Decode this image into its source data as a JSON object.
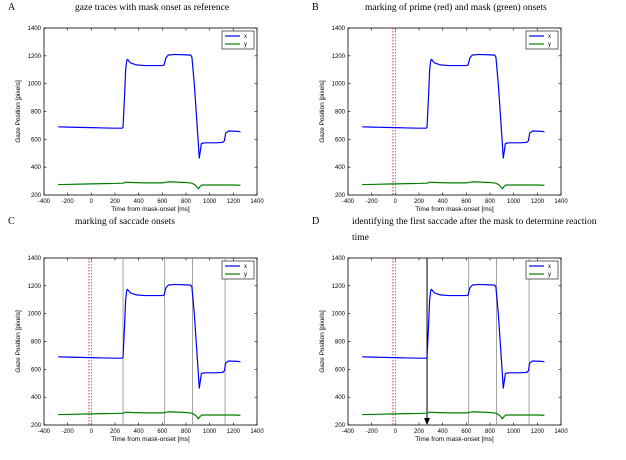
{
  "chart_data": [
    {
      "type": "line",
      "panel_label": "A",
      "title": "gaze traces with mask onset as reference",
      "xlabel": "Time from mask-onset [ms]",
      "ylabel": "Gaze Position [pixels]",
      "xlim": [
        -400,
        1400
      ],
      "ylim": [
        200,
        1400
      ],
      "xticks": [
        -400,
        -200,
        0,
        200,
        400,
        600,
        800,
        1000,
        1200,
        1400
      ],
      "yticks": [
        200,
        400,
        600,
        800,
        1000,
        1200,
        1400
      ],
      "grid": false,
      "legend_position": "top-right",
      "series": [
        {
          "name": "x",
          "color": "#0000ff"
        },
        {
          "name": "y",
          "color": "#008000"
        }
      ],
      "prime_onset": null,
      "mask_onset": null,
      "saccade_onsets": [],
      "reaction_arrow": null
    },
    {
      "type": "line",
      "panel_label": "B",
      "title": "marking of prime (red) and mask (green) onsets",
      "xlabel": "Time from mask-onset [ms]",
      "ylabel": "Gaze Position [pixels]",
      "xlim": [
        -400,
        1400
      ],
      "ylim": [
        200,
        1400
      ],
      "xticks": [
        -400,
        -200,
        0,
        200,
        400,
        600,
        800,
        1000,
        1200,
        1400
      ],
      "yticks": [
        200,
        400,
        600,
        800,
        1000,
        1200,
        1400
      ],
      "grid": false,
      "legend_position": "top-right",
      "series": [
        {
          "name": "x",
          "color": "#0000ff"
        },
        {
          "name": "y",
          "color": "#008000"
        }
      ],
      "prime_onset": -20,
      "mask_onset": 0,
      "saccade_onsets": [],
      "reaction_arrow": null
    },
    {
      "type": "line",
      "panel_label": "C",
      "title": "marking of saccade onsets",
      "xlabel": "Time from mask-onset [ms]",
      "ylabel": "Gaze Position [pixels]",
      "xlim": [
        -400,
        1400
      ],
      "ylim": [
        200,
        1400
      ],
      "xticks": [
        -400,
        -200,
        0,
        200,
        400,
        600,
        800,
        1000,
        1200,
        1400
      ],
      "yticks": [
        200,
        400,
        600,
        800,
        1000,
        1200,
        1400
      ],
      "grid": false,
      "legend_position": "top-right",
      "series": [
        {
          "name": "x",
          "color": "#0000ff"
        },
        {
          "name": "y",
          "color": "#008000"
        }
      ],
      "prime_onset": -20,
      "mask_onset": 0,
      "saccade_onsets": [
        268,
        620,
        855,
        1130
      ],
      "reaction_arrow": null
    },
    {
      "type": "line",
      "panel_label": "D",
      "title": "identifying the first saccade after the mask to determine reaction time",
      "xlabel": "Time from mask-onset [ms]",
      "ylabel": "Gaze Position [pixels]",
      "xlim": [
        -400,
        1400
      ],
      "ylim": [
        200,
        1400
      ],
      "xticks": [
        -400,
        -200,
        0,
        200,
        400,
        600,
        800,
        1000,
        1200,
        1400
      ],
      "yticks": [
        200,
        400,
        600,
        800,
        1000,
        1200,
        1400
      ],
      "grid": false,
      "legend_position": "top-right",
      "series": [
        {
          "name": "x",
          "color": "#0000ff"
        },
        {
          "name": "y",
          "color": "#008000"
        }
      ],
      "prime_onset": -20,
      "mask_onset": 0,
      "saccade_onsets": [
        268,
        620,
        855,
        1130
      ],
      "reaction_arrow": 268
    }
  ],
  "traces": {
    "x": [
      [
        -280,
        690
      ],
      [
        -200,
        688
      ],
      [
        -100,
        686
      ],
      [
        0,
        684
      ],
      [
        100,
        682
      ],
      [
        200,
        680
      ],
      [
        262,
        680
      ],
      [
        268,
        690
      ],
      [
        280,
        900
      ],
      [
        290,
        1100
      ],
      [
        298,
        1160
      ],
      [
        305,
        1175
      ],
      [
        330,
        1150
      ],
      [
        380,
        1135
      ],
      [
        450,
        1130
      ],
      [
        540,
        1130
      ],
      [
        600,
        1130
      ],
      [
        615,
        1135
      ],
      [
        630,
        1185
      ],
      [
        650,
        1205
      ],
      [
        700,
        1210
      ],
      [
        780,
        1208
      ],
      [
        840,
        1205
      ],
      [
        850,
        1190
      ],
      [
        870,
        1000
      ],
      [
        890,
        750
      ],
      [
        905,
        560
      ],
      [
        912,
        465
      ],
      [
        920,
        510
      ],
      [
        930,
        570
      ],
      [
        960,
        575
      ],
      [
        1050,
        575
      ],
      [
        1110,
        578
      ],
      [
        1125,
        590
      ],
      [
        1135,
        645
      ],
      [
        1160,
        660
      ],
      [
        1220,
        658
      ],
      [
        1260,
        655
      ]
    ],
    "y": [
      [
        -280,
        275
      ],
      [
        -200,
        276
      ],
      [
        -100,
        278
      ],
      [
        0,
        280
      ],
      [
        100,
        282
      ],
      [
        200,
        283
      ],
      [
        268,
        285
      ],
      [
        290,
        292
      ],
      [
        340,
        290
      ],
      [
        450,
        287
      ],
      [
        600,
        287
      ],
      [
        620,
        290
      ],
      [
        650,
        295
      ],
      [
        800,
        290
      ],
      [
        850,
        285
      ],
      [
        880,
        270
      ],
      [
        905,
        245
      ],
      [
        915,
        258
      ],
      [
        935,
        272
      ],
      [
        1000,
        272
      ],
      [
        1200,
        272
      ],
      [
        1260,
        270
      ]
    ]
  }
}
